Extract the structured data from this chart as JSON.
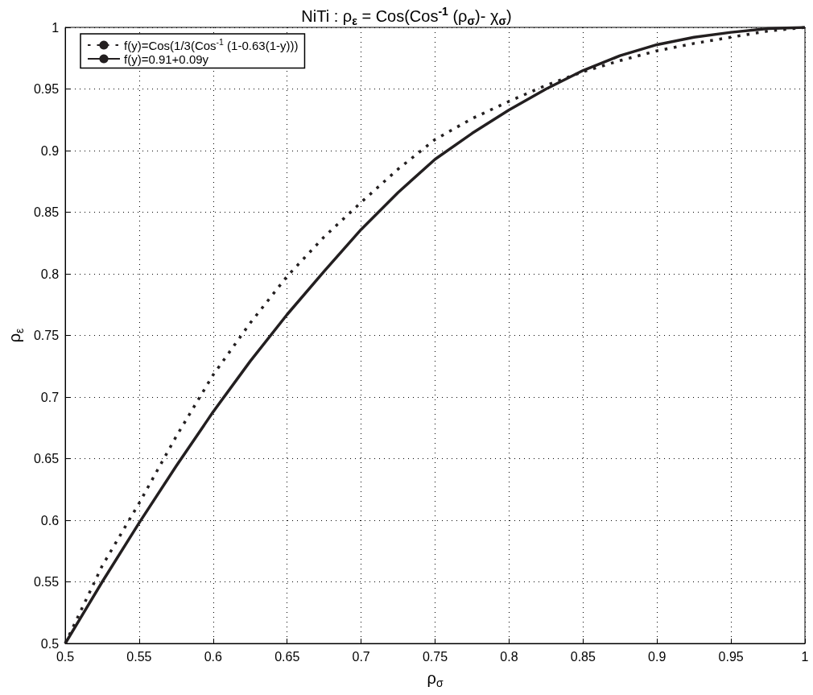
{
  "chart_data": {
    "type": "line",
    "title": "NiTi : ρ$_{ε}$ = Cos(Cos$^{-1}$ (ρ$_{σ}$)- χ$_{σ}$)",
    "xlabel": "ρ$_{σ}$",
    "ylabel": "ρ$_{ε}$",
    "x": [
      0.5,
      0.525,
      0.55,
      0.575,
      0.6,
      0.625,
      0.65,
      0.675,
      0.7,
      0.725,
      0.75,
      0.775,
      0.8,
      0.825,
      0.85,
      0.875,
      0.9,
      0.925,
      0.95,
      0.975,
      1.0
    ],
    "series": [
      {
        "name": "f(y)=Cos(1/3(Cos$^{-1}$ (1-0.63(1-y)))",
        "color": "#231f20",
        "line_style": "dotted",
        "values": [
          0.5,
          0.563,
          0.614,
          0.668,
          0.718,
          0.76,
          0.798,
          0.83,
          0.858,
          0.885,
          0.909,
          0.926,
          0.94,
          0.953,
          0.964,
          0.973,
          0.981,
          0.987,
          0.992,
          0.997,
          1.0
        ]
      },
      {
        "name": "f(y)=0.91+0.09y",
        "color": "#231f20",
        "line_style": "solid",
        "values": [
          0.5,
          0.55,
          0.598,
          0.644,
          0.688,
          0.729,
          0.767,
          0.802,
          0.836,
          0.866,
          0.893,
          0.914,
          0.933,
          0.95,
          0.965,
          0.977,
          0.986,
          0.992,
          0.996,
          0.999,
          1.0
        ]
      }
    ],
    "xlim": [
      0.5,
      1
    ],
    "xticks": [
      0.5,
      0.55,
      0.6,
      0.65,
      0.7,
      0.75,
      0.8,
      0.85,
      0.9,
      0.95,
      1
    ],
    "ylim": [
      0.5,
      1
    ],
    "yticks": [
      0.5,
      0.55,
      0.6,
      0.65,
      0.7,
      0.75,
      0.8,
      0.85,
      0.9,
      0.95,
      1
    ],
    "grid": true,
    "legend": "top left",
    "marker": "none"
  }
}
